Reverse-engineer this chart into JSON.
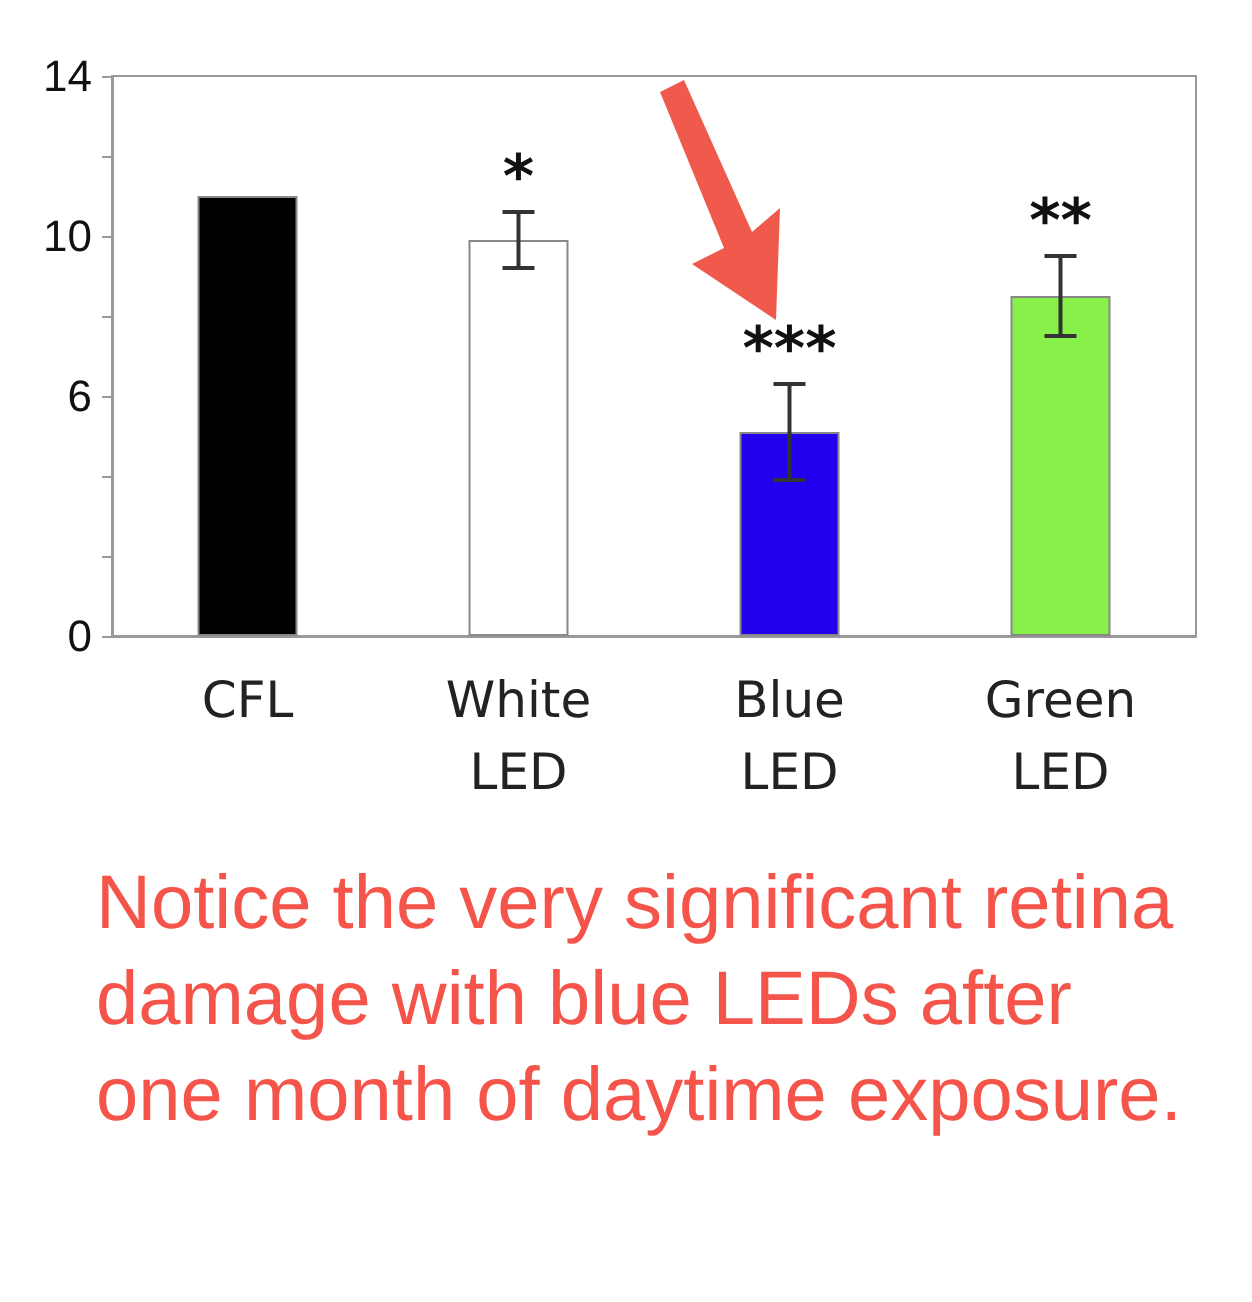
{
  "chart_data": {
    "type": "bar",
    "categories": [
      "CFL",
      "White\nLED",
      "Blue\nLED",
      "Green\nLED"
    ],
    "values": [
      11,
      9.9,
      5.1,
      8.5
    ],
    "colors": [
      "#000000",
      "#ffffff",
      "#2200ee",
      "#88f048"
    ],
    "errors": [
      null,
      0.7,
      1.2,
      1.0
    ],
    "ylim": [
      0,
      14
    ],
    "yticks": [
      0,
      {
        "value": 2,
        "label": null
      },
      {
        "value": 4,
        "label": null
      },
      6,
      {
        "value": 8,
        "label": null
      },
      10,
      {
        "value": 12,
        "label": null
      },
      14
    ],
    "grid": false,
    "annotations": [
      {
        "text": "*",
        "x": "White\nLED",
        "y": 10.6
      },
      {
        "text": "***",
        "x": "Blue\nLED",
        "y": 6.3
      },
      {
        "text": "**",
        "x": "Green\nLED",
        "y": 9.5
      },
      "Notice the very significant retina damage with blue LEDs after one month of daytime exposure."
    ]
  }
}
